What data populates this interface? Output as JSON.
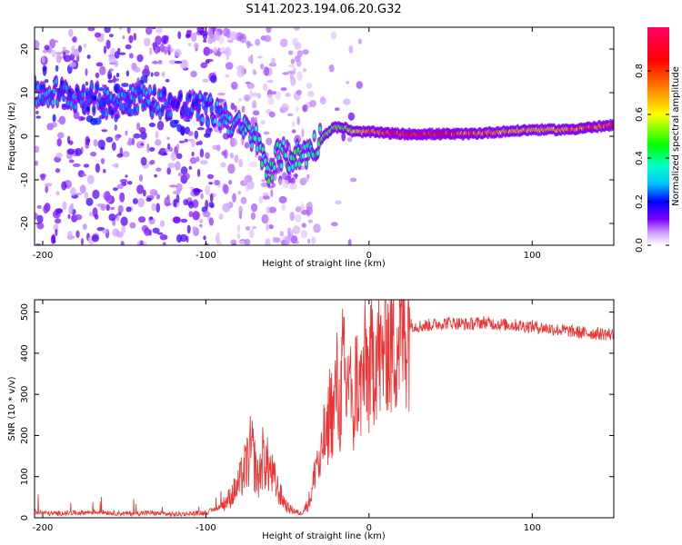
{
  "figure": {
    "title": "S141.2023.194.06.20.G32"
  },
  "chart_data": [
    {
      "type": "heatmap",
      "title": "S141.2023.194.06.20.G32",
      "xlabel": "Height of straight line (km)",
      "ylabel": "Frequency (Hz)",
      "xlim": [
        -205,
        150
      ],
      "ylim": [
        -25,
        25
      ],
      "x_ticks": [
        -200,
        -100,
        0,
        100
      ],
      "y_ticks": [
        -20,
        -10,
        0,
        10,
        20
      ],
      "colorbar": {
        "label": "Normalized spectral amplitude",
        "range": [
          0,
          1
        ],
        "ticks": [
          "0.0",
          "0.2",
          "0.4",
          "0.6",
          "0.8"
        ],
        "tick_values": [
          0.0,
          0.2,
          0.4,
          0.6,
          0.8
        ],
        "colors": [
          "#ffffff",
          "#cc99ff",
          "#7a00ff",
          "#0000ff",
          "#00bfff",
          "#00ffcc",
          "#00ff00",
          "#ffff00",
          "#ff8000",
          "#ff0000",
          "#ff0066"
        ]
      },
      "ridge": {
        "x": [
          -205,
          -190,
          -175,
          -160,
          -145,
          -130,
          -115,
          -100,
          -90,
          -80,
          -70,
          -62,
          -55,
          -48,
          -40,
          -33,
          -28,
          -22,
          -15,
          -10,
          -5,
          0,
          20,
          40,
          60,
          80,
          100,
          120,
          135,
          150
        ],
        "y": [
          10,
          10,
          9,
          8,
          9,
          8,
          7,
          6,
          5,
          2,
          0,
          -8,
          -4,
          -5,
          -4,
          -2,
          0,
          2,
          2,
          1,
          1,
          1,
          0.5,
          0.5,
          0.5,
          1,
          1.5,
          1.5,
          2,
          2.5
        ],
        "amplitude": [
          0.3,
          0.28,
          0.25,
          0.28,
          0.3,
          0.28,
          0.25,
          0.3,
          0.32,
          0.35,
          0.4,
          0.45,
          0.4,
          0.45,
          0.4,
          0.45,
          0.5,
          0.55,
          0.6,
          0.65,
          0.7,
          0.85,
          0.95,
          0.95,
          0.85,
          0.75,
          0.7,
          0.75,
          0.85,
          0.9
        ]
      }
    },
    {
      "type": "line",
      "xlabel": "Height of straight line (km)",
      "ylabel": "SNR (10 * v/v)",
      "xlim": [
        -205,
        150
      ],
      "ylim": [
        0,
        530
      ],
      "x_ticks": [
        -200,
        -100,
        0,
        100
      ],
      "y_ticks": [
        0,
        100,
        200,
        300,
        400,
        500
      ],
      "series": [
        {
          "color": "#ee3333",
          "x": [
            -205,
            -195,
            -180,
            -165,
            -150,
            -135,
            -120,
            -110,
            -100,
            -95,
            -90,
            -85,
            -80,
            -75,
            -72,
            -68,
            -65,
            -60,
            -55,
            -50,
            -45,
            -42,
            -38,
            -35,
            -32,
            -30,
            -28,
            -26,
            -24,
            -22,
            -20,
            -18,
            -16,
            -14,
            -12,
            -10,
            -8,
            -6,
            -4,
            -2,
            0,
            2,
            5,
            8,
            10,
            12,
            15,
            20,
            25,
            30,
            40,
            50,
            60,
            70,
            80,
            90,
            100,
            110,
            120,
            130,
            140,
            150
          ],
          "y": [
            15,
            10,
            12,
            14,
            10,
            12,
            8,
            10,
            12,
            20,
            30,
            50,
            80,
            130,
            170,
            90,
            150,
            110,
            60,
            25,
            15,
            10,
            30,
            60,
            150,
            110,
            200,
            180,
            280,
            240,
            330,
            250,
            380,
            280,
            400,
            200,
            350,
            300,
            330,
            380,
            340,
            380,
            420,
            360,
            500,
            400,
            430,
            450,
            470,
            465,
            470,
            475,
            470,
            475,
            470,
            468,
            465,
            460,
            455,
            450,
            448,
            445
          ]
        }
      ]
    }
  ]
}
